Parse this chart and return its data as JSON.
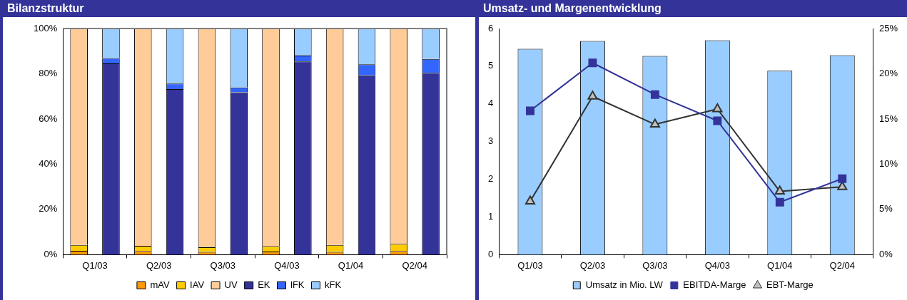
{
  "chart_data": [
    {
      "type": "bar",
      "title": "Bilanzstruktur",
      "stacked": true,
      "categories": [
        "Q1/03",
        null,
        "Q2/03",
        null,
        "Q3/03",
        null,
        "Q4/03",
        null,
        "Q1/04",
        null,
        "Q2/04",
        null
      ],
      "series": [
        {
          "name": "mAV",
          "color": "#ff9900",
          "values": [
            1.7,
            null,
            1.6,
            null,
            1.2,
            null,
            1.4,
            null,
            1.2,
            null,
            1.6,
            null
          ]
        },
        {
          "name": "IAV",
          "color": "#ffcc00",
          "values": [
            2.6,
            null,
            2.3,
            null,
            2.1,
            null,
            2.4,
            null,
            3.1,
            null,
            3.2,
            null
          ]
        },
        {
          "name": "UV",
          "color": "#ffcc99",
          "values": [
            95.7,
            null,
            96.1,
            null,
            96.7,
            null,
            96.2,
            null,
            95.7,
            null,
            95.2,
            null
          ]
        },
        {
          "name": "EK",
          "color": "#333399",
          "values": [
            null,
            84.6,
            null,
            73.2,
            null,
            71.8,
            null,
            85.4,
            null,
            79.3,
            null,
            80.4
          ]
        },
        {
          "name": "lFK",
          "color": "#3366ff",
          "values": [
            null,
            2.3,
            null,
            2.5,
            null,
            2.1,
            null,
            2.6,
            null,
            4.9,
            null,
            6.1
          ]
        },
        {
          "name": "kFK",
          "color": "#99ccff",
          "values": [
            null,
            13.1,
            null,
            24.3,
            null,
            26.1,
            null,
            12.0,
            null,
            15.8,
            null,
            13.5
          ]
        }
      ],
      "ylim": [
        0,
        100
      ],
      "yticks": [
        {
          "value": 0,
          "label": "0%"
        },
        {
          "value": 20,
          "label": "20%"
        },
        {
          "value": 40,
          "label": "40%"
        },
        {
          "value": 60,
          "label": "60%"
        },
        {
          "value": 80,
          "label": "80%"
        },
        {
          "value": 100,
          "label": "100%"
        }
      ],
      "grid": false,
      "legend": "bottom"
    },
    {
      "type": "bar",
      "title": "Umsatz- und Margenentwicklung",
      "categories": [
        "Q1/03",
        "Q2/03",
        "Q3/03",
        "Q4/03",
        "Q1/04",
        "Q2/04"
      ],
      "series": [
        {
          "name": "Umsatz in Mio. LW",
          "color": "#99ccff",
          "values": [
            5.46,
            5.67,
            5.27,
            5.69,
            4.88,
            5.29
          ]
        },
        {
          "name": "EBITDA-Marge",
          "type": "line",
          "axis": "y2",
          "marker": "square",
          "color": "#333399",
          "values": [
            15.9,
            21.2,
            17.7,
            14.8,
            5.8,
            8.4
          ]
        },
        {
          "name": "EBT-Marge",
          "type": "line",
          "axis": "y2",
          "marker": "triangle",
          "color": "#333333",
          "values": [
            5.9,
            17.5,
            14.4,
            16.1,
            7.0,
            7.5
          ]
        }
      ],
      "ylim": [
        0,
        6
      ],
      "yticks": [
        0,
        1,
        2,
        3,
        4,
        5,
        6
      ],
      "y2lim": [
        0,
        25
      ],
      "y2ticks": [
        {
          "value": 0,
          "label": "0%"
        },
        {
          "value": 5,
          "label": "5%"
        },
        {
          "value": 10,
          "label": "10%"
        },
        {
          "value": 15,
          "label": "15%"
        },
        {
          "value": 20,
          "label": "20%"
        },
        {
          "value": 25,
          "label": "25%"
        }
      ],
      "grid": false,
      "legend": "bottom"
    }
  ]
}
